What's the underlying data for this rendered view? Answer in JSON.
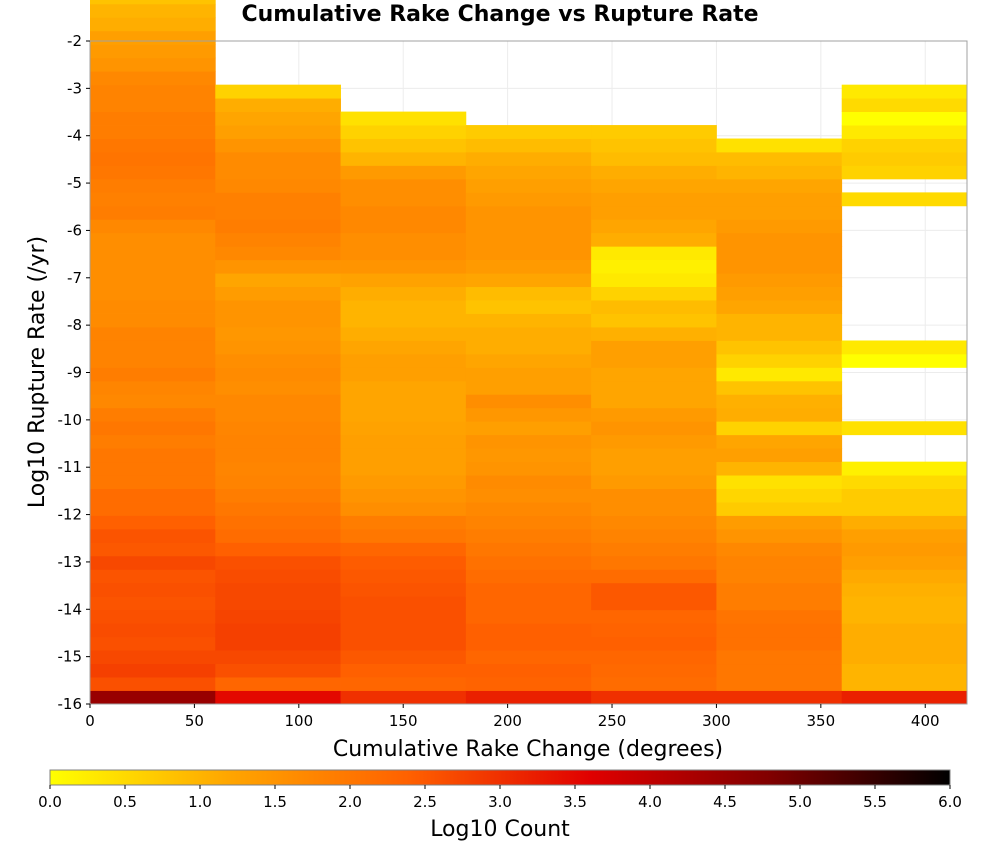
{
  "chart_data": {
    "type": "heatmap",
    "title": "Cumulative Rake Change vs Rupture Rate",
    "xlabel": "Cumulative Rake Change (degrees)",
    "ylabel": "Log10 Rupture Rate (/yr)",
    "colorbar_label": "Log10 Count",
    "xlim": [
      0,
      420
    ],
    "ylim": [
      -16,
      -2
    ],
    "x_ticks": [
      0,
      50,
      100,
      150,
      200,
      250,
      300,
      350,
      400
    ],
    "y_ticks": [
      -2,
      -3,
      -4,
      -5,
      -6,
      -7,
      -8,
      -9,
      -10,
      -11,
      -12,
      -13,
      -14,
      -15,
      -16
    ],
    "colorbar_ticks": [
      "0.0",
      "0.5",
      "1.0",
      "1.5",
      "2.0",
      "2.5",
      "3.0",
      "3.5",
      "4.0",
      "4.5",
      "5.0",
      "5.5",
      "6.0"
    ],
    "colorbar_range": [
      0,
      6
    ],
    "colormap": [
      "#ffff00",
      "#ffa500",
      "#ff6000",
      "#e00000",
      "#800000",
      "#000000"
    ],
    "grid": true,
    "x_bin_width": 60,
    "y_bin_height": 0.2843,
    "y_bin_min": -16,
    "columns": [
      {
        "x_start": 0,
        "values": [
          4.5,
          2.6,
          2.8,
          2.7,
          2.6,
          2.65,
          2.6,
          2.55,
          2.6,
          2.55,
          2.7,
          2.5,
          2.55,
          2.4,
          2.2,
          2.2,
          2.0,
          2.0,
          2.0,
          1.9,
          2.0,
          1.9,
          1.7,
          1.75,
          1.9,
          1.8,
          1.8,
          1.8,
          1.65,
          1.65,
          1.6,
          1.6,
          1.6,
          1.6,
          1.6,
          1.7,
          1.9,
          1.85,
          1.9,
          2.0,
          2.05,
          2.0,
          1.9,
          1.9,
          1.8,
          1.8,
          1.7,
          1.5,
          1.4,
          1.3,
          1.1,
          1.0,
          0.8,
          0.5,
          0.3,
          0.1
        ]
      },
      {
        "x_start": 60,
        "values": [
          3.5,
          2.3,
          2.6,
          2.7,
          2.8,
          2.8,
          2.75,
          2.7,
          2.7,
          2.65,
          2.6,
          2.4,
          2.2,
          2.1,
          2.0,
          1.9,
          1.8,
          1.75,
          1.8,
          1.8,
          1.75,
          1.7,
          1.7,
          1.6,
          1.65,
          1.6,
          1.5,
          1.45,
          1.5,
          1.5,
          1.35,
          1.2,
          1.5,
          1.7,
          1.8,
          1.9,
          1.85,
          1.85,
          1.7,
          1.65,
          1.65,
          1.5,
          1.3,
          1.2,
          1.1,
          0.6
        ]
      },
      {
        "x_start": 120,
        "values": [
          3.0,
          2.3,
          2.4,
          2.5,
          2.6,
          2.6,
          2.6,
          2.6,
          2.55,
          2.5,
          2.45,
          2.3,
          2.0,
          1.9,
          1.6,
          1.5,
          1.4,
          1.3,
          1.3,
          1.3,
          1.25,
          1.2,
          1.2,
          1.2,
          1.3,
          1.3,
          1.2,
          1.1,
          1.0,
          1.0,
          1.1,
          1.25,
          1.5,
          1.6,
          1.6,
          1.7,
          1.7,
          1.6,
          1.6,
          1.4,
          1.0,
          0.8,
          0.6,
          0.4
        ]
      },
      {
        "x_start": 180,
        "values": [
          3.2,
          2.35,
          2.4,
          2.3,
          2.4,
          2.4,
          2.3,
          2.3,
          2.3,
          2.2,
          2.1,
          2.0,
          1.9,
          1.8,
          1.7,
          1.6,
          1.65,
          1.5,
          1.45,
          1.5,
          1.3,
          1.45,
          1.6,
          1.3,
          1.3,
          1.2,
          1.1,
          1.1,
          1.0,
          0.8,
          0.9,
          1.2,
          1.4,
          1.5,
          1.5,
          1.5,
          1.5,
          1.4,
          1.3,
          1.2,
          1.1,
          0.9,
          0.7
        ]
      },
      {
        "x_start": 240,
        "values": [
          3.0,
          2.2,
          2.25,
          2.3,
          2.4,
          2.35,
          2.3,
          2.5,
          2.5,
          2.2,
          2.0,
          1.9,
          1.8,
          1.7,
          1.6,
          1.6,
          1.4,
          1.3,
          1.3,
          1.4,
          1.5,
          1.4,
          1.2,
          1.2,
          1.2,
          1.3,
          1.3,
          1.05,
          0.8,
          0.9,
          0.6,
          0.3,
          0.2,
          0.3,
          1.1,
          1.2,
          1.3,
          1.3,
          1.2,
          1.1,
          0.9,
          0.8,
          0.7
        ]
      },
      {
        "x_start": 300,
        "values": [
          3.0,
          2.0,
          2.0,
          2.0,
          2.1,
          2.1,
          2.05,
          1.9,
          1.9,
          1.8,
          1.8,
          1.7,
          1.5,
          1.35,
          0.7,
          0.55,
          0.4,
          1.0,
          1.3,
          1.2,
          0.6,
          1.1,
          1.05,
          0.8,
          0.3,
          0.6,
          0.8,
          1.0,
          1.0,
          1.2,
          1.3,
          1.4,
          1.5,
          1.5,
          1.5,
          1.4,
          1.3,
          1.3,
          1.2,
          1.0,
          0.9,
          0.4
        ]
      },
      {
        "x_start": 360,
        "values": [
          3.2,
          1.0,
          1.0,
          1.1,
          1.1,
          1.1,
          1.0,
          1.0,
          1.05,
          1.15,
          1.3,
          1.4,
          1.3,
          1.1,
          0.7,
          0.7,
          0.5,
          0.2,
          null,
          null,
          0.4,
          null,
          null,
          null,
          null,
          0.0,
          0.3,
          null,
          null,
          null,
          null,
          null,
          null,
          null,
          null,
          null,
          null,
          0.5,
          null,
          0.6,
          0.7,
          0.6,
          0.3,
          0.0,
          0.5,
          0.3
        ]
      }
    ]
  }
}
